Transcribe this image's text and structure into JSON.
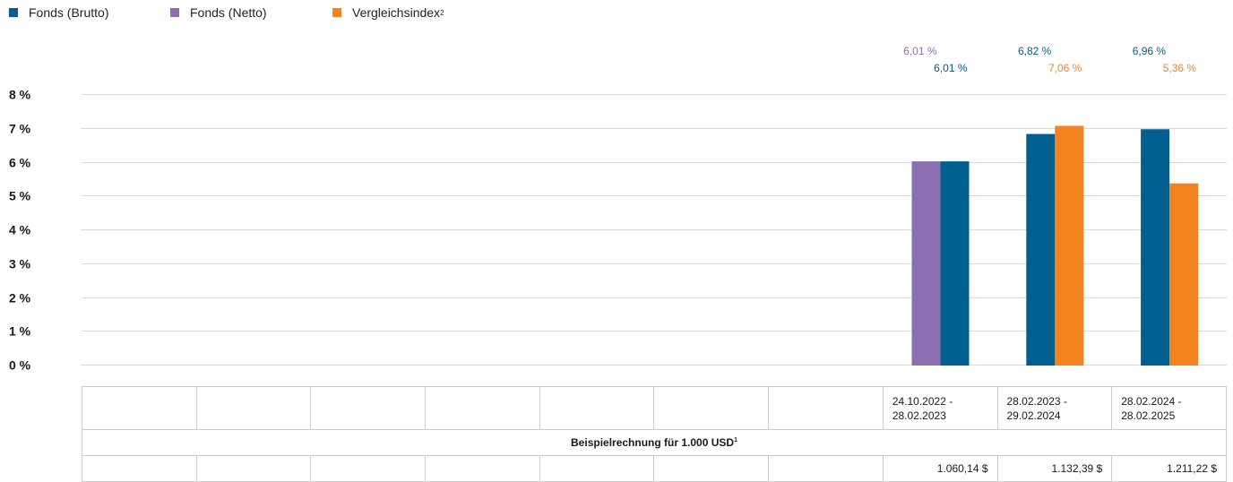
{
  "legend": [
    {
      "label": "Fonds (Brutto)",
      "color": "#005f8f",
      "sup": ""
    },
    {
      "label": "Fonds (Netto)",
      "color": "#8c6fb1",
      "sup": ""
    },
    {
      "label": "Vergleichsindex",
      "color": "#f4831f",
      "sup": "2"
    }
  ],
  "chart_data": {
    "type": "bar",
    "ylim": [
      0,
      8
    ],
    "y_ticks": [
      "0 %",
      "1 %",
      "2 %",
      "3 %",
      "4 %",
      "5 %",
      "6 %",
      "7 %",
      "8 %"
    ],
    "grid": true,
    "legend_position": "top-left",
    "categories": [
      "24.10.2022 - 28.02.2023",
      "28.02.2023 - 29.02.2024",
      "28.02.2024 - 28.02.2025"
    ],
    "series": [
      {
        "name": "Fonds (Brutto)",
        "color": "#005f8f",
        "values": [
          6.01,
          6.82,
          6.96
        ],
        "labels": [
          "6,01 %",
          "6,82 %",
          "6,96 %"
        ]
      },
      {
        "name": "Fonds (Netto)",
        "color": "#8c6fb1",
        "values": [
          6.01,
          null,
          null
        ],
        "labels": [
          "6,01 %",
          "",
          ""
        ]
      },
      {
        "name": "Vergleichsindex",
        "color": "#f4831f",
        "values": [
          null,
          7.06,
          5.36
        ],
        "labels": [
          "",
          "7,06 %",
          "5,36 %"
        ]
      }
    ]
  },
  "table": {
    "periods": [
      "",
      "",
      "",
      "",
      "",
      "",
      "",
      "24.10.2022 - 28.02.2023",
      "28.02.2023 - 29.02.2024",
      "28.02.2024 - 28.02.2025"
    ],
    "caption": "Beispielrechnung für 1.000 USD",
    "caption_sup": "1",
    "amounts": [
      "",
      "",
      "",
      "",
      "",
      "",
      "",
      "1.060,14 $",
      "1.132,39 $",
      "1.211,22 $"
    ]
  }
}
